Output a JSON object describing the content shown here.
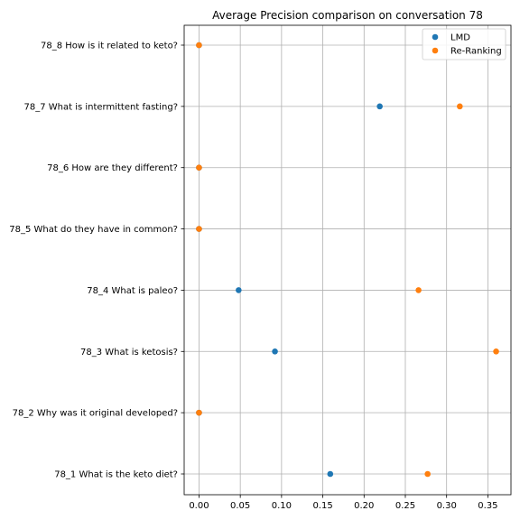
{
  "chart_data": {
    "type": "scatter",
    "title": "Average Precision comparison on conversation 78",
    "xlabel": "",
    "ylabel": "",
    "xlim": [
      -0.018,
      0.378
    ],
    "xticks": [
      0.0,
      0.05,
      0.1,
      0.15,
      0.2,
      0.25,
      0.3,
      0.35
    ],
    "xtick_labels": [
      "0.00",
      "0.05",
      "0.10",
      "0.15",
      "0.20",
      "0.25",
      "0.30",
      "0.35"
    ],
    "categories": [
      "78_1 What is the keto diet?",
      "78_2 Why was it original developed?",
      "78_3 What is ketosis?",
      "78_4 What is paleo?",
      "78_5 What do they have in common?",
      "78_6 How are they different?",
      "78_7 What is intermittent fasting?",
      "78_8 How is it related to keto?"
    ],
    "series": [
      {
        "name": "LMD",
        "color": "#1f77b4",
        "values": [
          0.159,
          0.0,
          0.092,
          0.048,
          0.0,
          0.0,
          0.219,
          0.0
        ]
      },
      {
        "name": "Re-Ranking",
        "color": "#ff7f0e",
        "values": [
          0.277,
          0.0,
          0.36,
          0.266,
          0.0,
          0.0,
          0.316,
          0.0
        ]
      }
    ],
    "grid": true,
    "legend_position": "top-right"
  }
}
